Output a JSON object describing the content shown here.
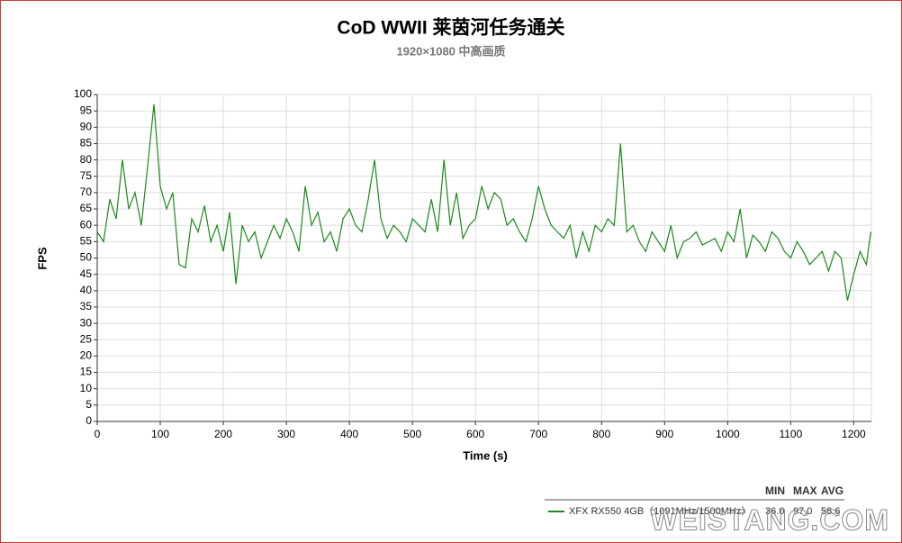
{
  "chart_data": {
    "type": "line",
    "title": "CoD WWII 莱茵河任务通关",
    "subtitle": "1920×1080 中高画质",
    "x_label": "Time (s)",
    "y_label": "FPS",
    "x": [
      0,
      10,
      20,
      30,
      40,
      50,
      60,
      70,
      80,
      90,
      100,
      110,
      120,
      130,
      140,
      150,
      160,
      170,
      180,
      190,
      200,
      210,
      220,
      230,
      240,
      250,
      260,
      270,
      280,
      290,
      300,
      310,
      320,
      330,
      340,
      350,
      360,
      370,
      380,
      390,
      400,
      410,
      420,
      430,
      440,
      450,
      460,
      470,
      480,
      490,
      500,
      510,
      520,
      530,
      540,
      550,
      560,
      570,
      580,
      590,
      600,
      610,
      620,
      630,
      640,
      650,
      660,
      670,
      680,
      690,
      700,
      710,
      720,
      730,
      740,
      750,
      760,
      770,
      780,
      790,
      800,
      810,
      820,
      830,
      840,
      850,
      860,
      870,
      880,
      890,
      900,
      910,
      920,
      930,
      940,
      950,
      960,
      970,
      980,
      990,
      1000,
      1010,
      1020,
      1030,
      1040,
      1050,
      1060,
      1070,
      1080,
      1090,
      1100,
      1110,
      1120,
      1130,
      1140,
      1150,
      1160,
      1170,
      1180,
      1190,
      1200,
      1210,
      1220,
      1227
    ],
    "series": [
      {
        "name": "XFX RX550 4GB（1091MHz/1500MHz）",
        "color": "#1a8a1a",
        "values": [
          58,
          55,
          68,
          62,
          80,
          65,
          70,
          60,
          78,
          97,
          72,
          65,
          70,
          48,
          47,
          62,
          58,
          66,
          55,
          60,
          52,
          64,
          42,
          60,
          55,
          58,
          50,
          55,
          60,
          56,
          62,
          58,
          52,
          72,
          60,
          64,
          55,
          58,
          52,
          62,
          65,
          60,
          58,
          68,
          80,
          62,
          56,
          60,
          58,
          55,
          62,
          60,
          58,
          68,
          58,
          80,
          60,
          70,
          56,
          60,
          62,
          72,
          65,
          70,
          68,
          60,
          62,
          58,
          55,
          62,
          72,
          65,
          60,
          58,
          56,
          60,
          50,
          58,
          52,
          60,
          58,
          62,
          60,
          85,
          58,
          60,
          55,
          52,
          58,
          55,
          52,
          60,
          50,
          55,
          56,
          58,
          54,
          55,
          56,
          52,
          58,
          55,
          65,
          50,
          57,
          55,
          52,
          58,
          56,
          52,
          50,
          55,
          52,
          48,
          50,
          52,
          46,
          52,
          50,
          37,
          45,
          52,
          48,
          58
        ]
      }
    ],
    "xlim": [
      0,
      1228
    ],
    "ylim": [
      0,
      100
    ],
    "xticks": [
      0,
      100,
      200,
      300,
      400,
      500,
      600,
      700,
      800,
      900,
      1000,
      1100,
      1200
    ],
    "yticks": [
      0,
      5,
      10,
      15,
      20,
      25,
      30,
      35,
      40,
      45,
      50,
      55,
      60,
      65,
      70,
      75,
      80,
      85,
      90,
      95,
      100
    ],
    "grid": true,
    "legend_stats": {
      "headers": [
        "MIN",
        "MAX",
        "AVG"
      ],
      "values": [
        "36.0",
        "97.0",
        "58.6"
      ]
    },
    "watermark": "WEISTANG.COM"
  }
}
